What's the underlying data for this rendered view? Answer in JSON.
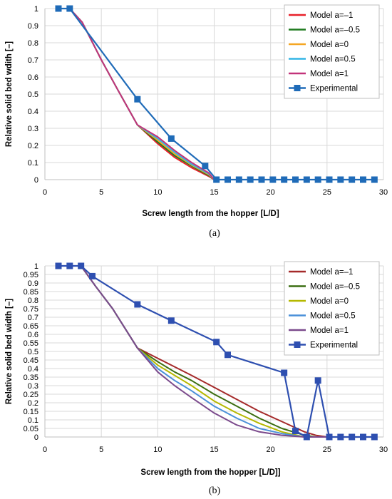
{
  "chart_data": [
    {
      "type": "line",
      "caption": "(a)",
      "xlabel": "Screw length from the hopper [L/D]",
      "ylabel": "Relative solid bed wdith [–]",
      "xlim": [
        0,
        30
      ],
      "ylim": [
        0,
        1
      ],
      "xticks": [
        "0",
        "5",
        "10",
        "15",
        "20",
        "25",
        "30"
      ],
      "yticks": [
        "0",
        "0.1",
        "0.2",
        "0.3",
        "0.4",
        "0.5",
        "0.6",
        "0.7",
        "0.8",
        "0.9",
        "1"
      ],
      "grid": true,
      "legend_position": "top-right",
      "series": [
        {
          "name": "Model a=–1",
          "color": "#e8202a",
          "marker": "none",
          "x": [
            2.2,
            3.3,
            5,
            6.5,
            8.2,
            10,
            11.5,
            13,
            14.5,
            15
          ],
          "y": [
            1,
            0.92,
            0.7,
            0.52,
            0.32,
            0.21,
            0.13,
            0.07,
            0.02,
            0
          ]
        },
        {
          "name": "Model a=–0.5",
          "color": "#1e7a1e",
          "marker": "none",
          "x": [
            2.2,
            3.3,
            5,
            6.5,
            8.2,
            10,
            11.5,
            13,
            14.5,
            15
          ],
          "y": [
            1,
            0.92,
            0.7,
            0.52,
            0.32,
            0.22,
            0.14,
            0.08,
            0.025,
            0
          ]
        },
        {
          "name": "Model a=0",
          "color": "#f5a623",
          "marker": "none",
          "x": [
            2.2,
            3.3,
            5,
            6.5,
            8.2,
            10,
            11.5,
            13,
            14.5,
            15
          ],
          "y": [
            1,
            0.92,
            0.7,
            0.52,
            0.32,
            0.23,
            0.15,
            0.085,
            0.03,
            0
          ]
        },
        {
          "name": "Model a=0.5",
          "color": "#33b5e5",
          "marker": "none",
          "x": [
            2.2,
            3.3,
            5,
            6.5,
            8.2,
            10,
            11.5,
            13,
            14.5,
            15
          ],
          "y": [
            1,
            0.92,
            0.7,
            0.52,
            0.32,
            0.24,
            0.16,
            0.09,
            0.035,
            0
          ]
        },
        {
          "name": "Model a=1",
          "color": "#c2337a",
          "marker": "none",
          "x": [
            2.2,
            3.3,
            5,
            6.5,
            8.2,
            10,
            11.5,
            13,
            14.5,
            15
          ],
          "y": [
            1,
            0.92,
            0.7,
            0.52,
            0.32,
            0.25,
            0.17,
            0.1,
            0.04,
            0
          ]
        },
        {
          "name": "Experimental",
          "color": "#1f6bb8",
          "marker": "square",
          "x": [
            1.2,
            2.2,
            8.2,
            11.2,
            14.2,
            15.2,
            16.2,
            17.2,
            18.2,
            19.2,
            20.2,
            21.2,
            22.2,
            23.2,
            24.2,
            25.2,
            26.2,
            27.2,
            28.2,
            29.2
          ],
          "y": [
            1,
            1,
            0.47,
            0.24,
            0.08,
            0,
            0,
            0,
            0,
            0,
            0,
            0,
            0,
            0,
            0,
            0,
            0,
            0,
            0,
            0
          ]
        }
      ]
    },
    {
      "type": "line",
      "caption": "(b)",
      "xlabel": "Screw length from the hopper [L/D]]",
      "ylabel": "Relative solid bed width [–]",
      "xlim": [
        0,
        30
      ],
      "ylim": [
        0,
        1
      ],
      "xticks": [
        "0",
        "5",
        "10",
        "15",
        "20",
        "25",
        "30"
      ],
      "yticks": [
        "0",
        "0.05",
        "0.1",
        "0.15",
        "0.2",
        "0.25",
        "0.3",
        "0.35",
        "0.4",
        "0.45",
        "0.5",
        "0.55",
        "0.6",
        "0.65",
        "0.7",
        "0.75",
        "0.8",
        "0.85",
        "0.9",
        "0.95",
        "1"
      ],
      "grid": true,
      "legend_position": "top-right",
      "series": [
        {
          "name": "Model a=–1",
          "color": "#a52a2a",
          "marker": "none",
          "x": [
            3.2,
            4.5,
            6,
            8.2,
            10,
            11.5,
            13,
            15,
            17,
            19,
            21,
            23,
            24,
            25
          ],
          "y": [
            1,
            0.88,
            0.75,
            0.52,
            0.46,
            0.41,
            0.36,
            0.29,
            0.22,
            0.15,
            0.09,
            0.03,
            0.01,
            0
          ]
        },
        {
          "name": "Model a=–0.5",
          "color": "#3c6e12",
          "marker": "none",
          "x": [
            3.2,
            4.5,
            6,
            8.2,
            10,
            11.5,
            13,
            15,
            17,
            19,
            21,
            23,
            24,
            25
          ],
          "y": [
            1,
            0.88,
            0.75,
            0.52,
            0.44,
            0.38,
            0.33,
            0.25,
            0.18,
            0.11,
            0.05,
            0.01,
            0,
            0
          ]
        },
        {
          "name": "Model a=0",
          "color": "#b5b800",
          "marker": "none",
          "x": [
            3.2,
            4.5,
            6,
            8.2,
            10,
            11.5,
            13,
            15,
            17,
            19,
            21,
            23,
            24,
            25
          ],
          "y": [
            1,
            0.88,
            0.75,
            0.52,
            0.42,
            0.36,
            0.3,
            0.21,
            0.14,
            0.08,
            0.03,
            0,
            0,
            0
          ]
        },
        {
          "name": "Model a=0.5",
          "color": "#4a90d9",
          "marker": "none",
          "x": [
            3.2,
            4.5,
            6,
            8.2,
            10,
            11.5,
            13,
            15,
            17,
            19,
            21,
            23,
            24,
            25
          ],
          "y": [
            1,
            0.88,
            0.75,
            0.52,
            0.4,
            0.33,
            0.27,
            0.18,
            0.11,
            0.05,
            0.02,
            0,
            0,
            0
          ]
        },
        {
          "name": "Model a=1",
          "color": "#7b4a8c",
          "marker": "none",
          "x": [
            3.2,
            4.5,
            6,
            8.2,
            10,
            11.5,
            13,
            15,
            17,
            19,
            21,
            23,
            24,
            25
          ],
          "y": [
            1,
            0.88,
            0.75,
            0.52,
            0.38,
            0.3,
            0.23,
            0.14,
            0.07,
            0.03,
            0.01,
            0,
            0,
            0
          ]
        },
        {
          "name": "Experimental",
          "color": "#2e4fb0",
          "marker": "square",
          "x": [
            1.2,
            2.2,
            3.2,
            4.2,
            8.2,
            11.2,
            15.2,
            16.2,
            21.2,
            22.2,
            23.2,
            24.2,
            25.2,
            26.2,
            27.2,
            28.2,
            29.2
          ],
          "y": [
            1,
            1,
            1,
            0.94,
            0.775,
            0.68,
            0.555,
            0.48,
            0.375,
            0.035,
            0,
            0.33,
            0,
            0,
            0,
            0,
            0
          ]
        }
      ]
    }
  ]
}
